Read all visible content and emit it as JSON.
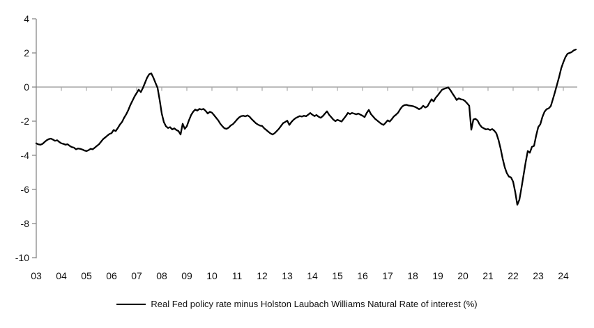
{
  "chart_data": {
    "type": "line",
    "title": "",
    "xlabel": "",
    "ylabel": "",
    "x_axis": {
      "tick_labels": [
        "03",
        "04",
        "05",
        "06",
        "07",
        "08",
        "09",
        "10",
        "11",
        "12",
        "13",
        "14",
        "15",
        "16",
        "17",
        "18",
        "19",
        "20",
        "21",
        "22",
        "23",
        "24"
      ],
      "labels_position": "below-plot",
      "range_years": [
        2003,
        2024.6
      ]
    },
    "y_axis": {
      "tick_labels": [
        "4",
        "2",
        "0",
        "-2",
        "-4",
        "-6",
        "-8",
        "-10"
      ],
      "tick_values": [
        4,
        2,
        0,
        -2,
        -4,
        -6,
        -8,
        -10
      ],
      "range": [
        -10,
        4
      ]
    },
    "grid": false,
    "zero_line": true,
    "legend_position": "bottom-center",
    "colors": {
      "series_line": "#000000",
      "axis_line": "#7f7f7f",
      "zero_line": "#a6a6a6",
      "label_text": "#111111"
    },
    "series": [
      {
        "name": "Real Fed policy rate minus Holston Laubach Williams Natural Rate of interest (%)",
        "color": "#000000",
        "x_start_year": 2003,
        "points_per_year": 12,
        "values": [
          -3.3,
          -3.36,
          -3.38,
          -3.33,
          -3.22,
          -3.12,
          -3.05,
          -3.02,
          -3.08,
          -3.15,
          -3.12,
          -3.22,
          -3.3,
          -3.33,
          -3.38,
          -3.35,
          -3.45,
          -3.52,
          -3.55,
          -3.65,
          -3.6,
          -3.62,
          -3.66,
          -3.72,
          -3.75,
          -3.7,
          -3.62,
          -3.65,
          -3.55,
          -3.45,
          -3.35,
          -3.2,
          -3.05,
          -2.95,
          -2.85,
          -2.75,
          -2.7,
          -2.52,
          -2.58,
          -2.4,
          -2.2,
          -2.05,
          -1.8,
          -1.6,
          -1.35,
          -1.05,
          -0.8,
          -0.55,
          -0.35,
          -0.15,
          -0.3,
          -0.05,
          0.25,
          0.55,
          0.75,
          0.8,
          0.55,
          0.25,
          -0.05,
          -0.75,
          -1.55,
          -2.05,
          -2.3,
          -2.4,
          -2.35,
          -2.48,
          -2.42,
          -2.52,
          -2.58,
          -2.78,
          -2.15,
          -2.45,
          -2.3,
          -1.95,
          -1.65,
          -1.45,
          -1.32,
          -1.38,
          -1.28,
          -1.32,
          -1.28,
          -1.4,
          -1.55,
          -1.45,
          -1.5,
          -1.65,
          -1.8,
          -1.95,
          -2.15,
          -2.3,
          -2.42,
          -2.45,
          -2.38,
          -2.25,
          -2.18,
          -2.05,
          -1.9,
          -1.78,
          -1.7,
          -1.68,
          -1.72,
          -1.66,
          -1.74,
          -1.88,
          -2.0,
          -2.12,
          -2.2,
          -2.26,
          -2.28,
          -2.42,
          -2.52,
          -2.62,
          -2.72,
          -2.78,
          -2.7,
          -2.58,
          -2.45,
          -2.28,
          -2.12,
          -2.05,
          -1.97,
          -2.22,
          -2.05,
          -1.92,
          -1.82,
          -1.76,
          -1.7,
          -1.73,
          -1.68,
          -1.71,
          -1.62,
          -1.52,
          -1.62,
          -1.7,
          -1.64,
          -1.74,
          -1.8,
          -1.7,
          -1.56,
          -1.42,
          -1.62,
          -1.76,
          -1.9,
          -2.0,
          -1.92,
          -1.97,
          -2.02,
          -1.86,
          -1.7,
          -1.52,
          -1.58,
          -1.52,
          -1.56,
          -1.6,
          -1.55,
          -1.62,
          -1.68,
          -1.76,
          -1.52,
          -1.34,
          -1.58,
          -1.72,
          -1.86,
          -1.96,
          -2.06,
          -2.16,
          -2.22,
          -2.1,
          -1.95,
          -2.02,
          -1.88,
          -1.72,
          -1.62,
          -1.5,
          -1.3,
          -1.14,
          -1.06,
          -1.04,
          -1.08,
          -1.1,
          -1.12,
          -1.16,
          -1.22,
          -1.3,
          -1.24,
          -1.1,
          -1.2,
          -1.14,
          -0.92,
          -0.72,
          -0.84,
          -0.62,
          -0.48,
          -0.32,
          -0.16,
          -0.1,
          -0.06,
          -0.02,
          -0.18,
          -0.38,
          -0.56,
          -0.76,
          -0.66,
          -0.72,
          -0.74,
          -0.82,
          -0.95,
          -1.1,
          -2.5,
          -1.9,
          -1.86,
          -1.96,
          -2.2,
          -2.35,
          -2.42,
          -2.48,
          -2.46,
          -2.52,
          -2.46,
          -2.56,
          -2.72,
          -3.1,
          -3.6,
          -4.2,
          -4.7,
          -5.05,
          -5.25,
          -5.3,
          -5.55,
          -6.15,
          -6.9,
          -6.6,
          -5.9,
          -5.15,
          -4.4,
          -3.75,
          -3.85,
          -3.5,
          -3.45,
          -2.85,
          -2.35,
          -2.18,
          -1.75,
          -1.45,
          -1.3,
          -1.25,
          -1.12,
          -0.72,
          -0.3,
          0.15,
          0.6,
          1.1,
          1.45,
          1.75,
          1.95,
          2.0,
          2.05,
          2.15,
          2.2
        ]
      }
    ]
  },
  "legend": {
    "label": "Real Fed policy rate minus Holston Laubach Williams Natural Rate of interest (%)"
  }
}
